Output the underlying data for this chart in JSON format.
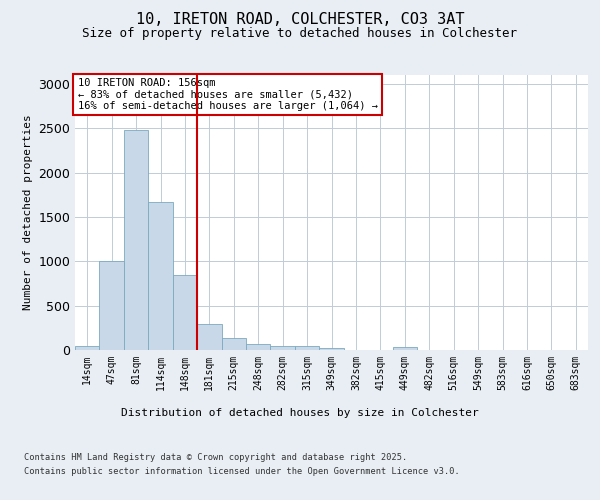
{
  "title_line1": "10, IRETON ROAD, COLCHESTER, CO3 3AT",
  "title_line2": "Size of property relative to detached houses in Colchester",
  "xlabel": "Distribution of detached houses by size in Colchester",
  "ylabel": "Number of detached properties",
  "footnote1": "Contains HM Land Registry data © Crown copyright and database right 2025.",
  "footnote2": "Contains public sector information licensed under the Open Government Licence v3.0.",
  "annotation_line1": "10 IRETON ROAD: 156sqm",
  "annotation_line2": "← 83% of detached houses are smaller (5,432)",
  "annotation_line3": "16% of semi-detached houses are larger (1,064) →",
  "bar_color": "#c8d8e8",
  "bar_edgecolor": "#7aaabf",
  "vline_color": "#cc0000",
  "annotation_box_edgecolor": "#cc0000",
  "categories": [
    "14sqm",
    "47sqm",
    "81sqm",
    "114sqm",
    "148sqm",
    "181sqm",
    "215sqm",
    "248sqm",
    "282sqm",
    "315sqm",
    "349sqm",
    "382sqm",
    "415sqm",
    "449sqm",
    "482sqm",
    "516sqm",
    "549sqm",
    "583sqm",
    "616sqm",
    "650sqm",
    "683sqm"
  ],
  "values": [
    50,
    1005,
    2480,
    1670,
    840,
    295,
    140,
    65,
    50,
    40,
    20,
    0,
    0,
    30,
    0,
    0,
    0,
    0,
    0,
    0,
    0
  ],
  "ylim": [
    0,
    3100
  ],
  "yticks": [
    0,
    500,
    1000,
    1500,
    2000,
    2500,
    3000
  ],
  "vline_x_index": 4.5,
  "background_color": "#e8eef4",
  "plot_background": "#ffffff",
  "grid_color": "#c0cdd8"
}
